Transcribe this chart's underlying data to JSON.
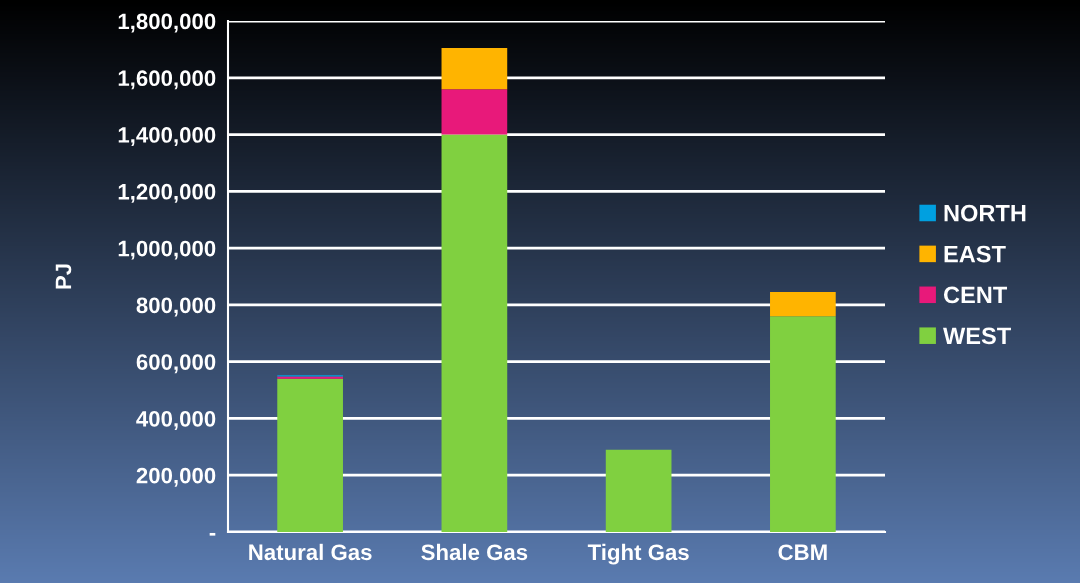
{
  "chart_data": {
    "type": "bar",
    "stacked": true,
    "ylabel": "PJ",
    "categories": [
      "Natural Gas",
      "Shale Gas",
      "Tight Gas",
      "CBM"
    ],
    "series": [
      {
        "name": "WEST",
        "color": "#80d040",
        "values": [
          540000,
          1400000,
          290000,
          760000
        ]
      },
      {
        "name": "CENT",
        "color": "#e8197a",
        "values": [
          8000,
          160000,
          null,
          null
        ]
      },
      {
        "name": "EAST",
        "color": "#ffb400",
        "values": [
          null,
          145000,
          null,
          85000
        ]
      },
      {
        "name": "NORTH",
        "color": "#00a0e0",
        "values": [
          4000,
          null,
          null,
          null
        ]
      }
    ],
    "ylim": [
      0,
      1800000
    ],
    "yticks": [
      {
        "value": 0,
        "label": "-"
      },
      {
        "value": 200000,
        "label": "200,000"
      },
      {
        "value": 400000,
        "label": "400,000"
      },
      {
        "value": 600000,
        "label": "600,000"
      },
      {
        "value": 800000,
        "label": "800,000"
      },
      {
        "value": 1000000,
        "label": "1,000,000"
      },
      {
        "value": 1200000,
        "label": "1,200,000"
      },
      {
        "value": 1400000,
        "label": "1,400,000"
      },
      {
        "value": 1600000,
        "label": "1,600,000"
      },
      {
        "value": 1800000,
        "label": "1,800,000"
      }
    ],
    "grid": "y",
    "legend": "right"
  }
}
